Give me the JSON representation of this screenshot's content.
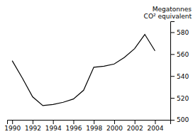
{
  "chart_data": {
    "type": "line",
    "x": [
      1990,
      1991,
      1992,
      1993,
      1994,
      1995,
      1996,
      1997,
      1998,
      1999,
      2000,
      2001,
      2002,
      2003,
      2004
    ],
    "values": [
      554,
      538,
      521,
      513,
      514,
      516,
      519,
      527,
      548,
      549,
      551,
      557,
      565,
      578,
      563
    ],
    "ylabel": [
      "Megatonnes",
      "CO² equivalent"
    ],
    "xlim": [
      1989.5,
      2005.5
    ],
    "ylim": [
      500,
      590
    ],
    "xticks": [
      1990,
      1992,
      1994,
      1996,
      1998,
      2000,
      2002,
      2004
    ],
    "yticks": [
      500,
      520,
      540,
      560,
      580
    ],
    "color": "#000000",
    "grid": false
  }
}
